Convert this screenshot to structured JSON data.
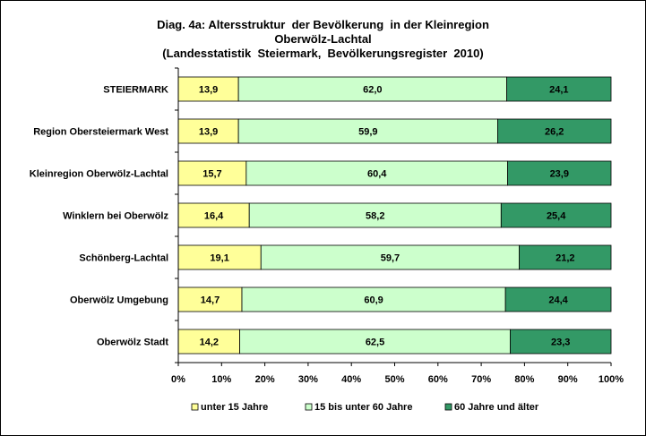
{
  "chart_data": {
    "type": "bar",
    "orientation": "horizontal",
    "stacked": true,
    "percent_stacked": true,
    "title_lines": [
      "Diag. 4a: Altersstruktur  der Bevölkerung  in der Kleinregion",
      "Oberwölz-Lachtal",
      "(Landesstatistik  Steiermark,  Bevölkerungsregister  2010)"
    ],
    "categories": [
      "STEIERMARK",
      "Region Obersteiermark West",
      "Kleinregion Oberwölz-Lachtal",
      "Winklern bei Oberwölz",
      "Schönberg-Lachtal",
      "Oberwölz Umgebung",
      "Oberwölz Stadt"
    ],
    "series": [
      {
        "name": "unter 15 Jahre",
        "color": "#ffff99",
        "values": [
          13.9,
          13.9,
          15.7,
          16.4,
          19.1,
          14.7,
          14.2
        ],
        "labels": [
          "13,9",
          "13,9",
          "15,7",
          "16,4",
          "19,1",
          "14,7",
          "14,2"
        ]
      },
      {
        "name": "15 bis unter 60 Jahre",
        "color": "#ccffcc",
        "values": [
          62.0,
          59.9,
          60.4,
          58.2,
          59.7,
          60.9,
          62.5
        ],
        "labels": [
          "62,0",
          "59,9",
          "60,4",
          "58,2",
          "59,7",
          "60,9",
          "62,5"
        ]
      },
      {
        "name": "60 Jahre und älter",
        "color": "#339966",
        "values": [
          24.1,
          26.2,
          23.9,
          25.4,
          21.2,
          24.4,
          23.3
        ],
        "labels": [
          "24,1",
          "26,2",
          "23,9",
          "25,4",
          "21,2",
          "24,4",
          "23,3"
        ]
      }
    ],
    "xlim": [
      0,
      100
    ],
    "x_ticks": [
      "0%",
      "10%",
      "20%",
      "30%",
      "40%",
      "50%",
      "60%",
      "70%",
      "80%",
      "90%",
      "100%"
    ],
    "grid": false,
    "legend_position": "bottom"
  }
}
